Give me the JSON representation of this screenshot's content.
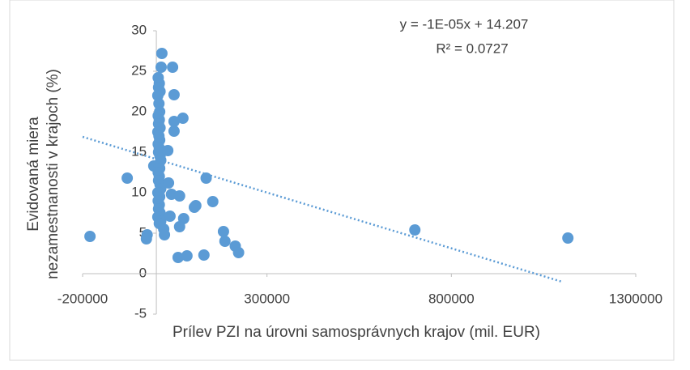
{
  "chart_data": {
    "type": "scatter",
    "xlabel": "Prílev PZI na úrovni samosprávnych krajov (mil. EUR)",
    "ylabel": [
      "Evidovaná miera",
      "nezamestnanosti v krajoch (%)"
    ],
    "annotations": [
      "y = -1E-05x + 14.207",
      "R² = 0.0727"
    ],
    "xlim": [
      -200000,
      1300000
    ],
    "xticks": [
      -200000,
      300000,
      800000,
      1300000
    ],
    "ylim": [
      -5,
      30
    ],
    "yticks": [
      -5,
      0,
      5,
      10,
      15,
      20,
      25,
      30
    ],
    "grid": false,
    "series": [
      {
        "color": "#5b9bd5",
        "x": [
          -180000,
          -79000,
          -25000,
          -27000,
          -7000,
          4000,
          15000,
          13000,
          44000,
          5000,
          8000,
          6000,
          10000,
          4000,
          7000,
          9000,
          5000,
          8000,
          6000,
          10000,
          4000,
          7000,
          9000,
          5000,
          8000,
          6000,
          10000,
          12000,
          7000,
          9000,
          5000,
          8000,
          6000,
          10000,
          12000,
          7000,
          9000,
          5000,
          8000,
          6000,
          10000,
          4000,
          12000,
          48000,
          72000,
          48000,
          48000,
          31000,
          33000,
          41000,
          63000,
          135000,
          153000,
          103000,
          107000,
          74000,
          37000,
          63000,
          59000,
          83000,
          129000,
          182000,
          186000,
          214000,
          223000,
          701000,
          1116000,
          8000,
          20000,
          22000
        ],
        "values": [
          4.6,
          11.8,
          4.8,
          4.3,
          13.3,
          10.0,
          27.2,
          25.5,
          25.5,
          24.2,
          23.5,
          23.0,
          22.5,
          22.0,
          21.0,
          20.0,
          19.5,
          19.0,
          18.5,
          18.0,
          17.5,
          17.0,
          16.5,
          16.0,
          15.5,
          15.0,
          14.5,
          14.0,
          13.5,
          13.0,
          12.5,
          12.0,
          11.5,
          11.0,
          10.5,
          10.0,
          9.5,
          9.0,
          8.5,
          8.0,
          7.5,
          7.0,
          6.5,
          22.1,
          19.2,
          18.8,
          17.6,
          15.2,
          11.2,
          9.8,
          9.6,
          11.8,
          8.9,
          8.2,
          8.4,
          6.8,
          7.1,
          5.8,
          2.0,
          2.2,
          2.3,
          5.2,
          4.0,
          3.4,
          2.6,
          5.4,
          4.4,
          6.2,
          5.5,
          4.8
        ]
      },
      {
        "type": "trendline",
        "color": "#5b9bd5",
        "x": [
          -200000,
          1100000
        ],
        "values": [
          16.9,
          -1.0
        ]
      }
    ]
  }
}
